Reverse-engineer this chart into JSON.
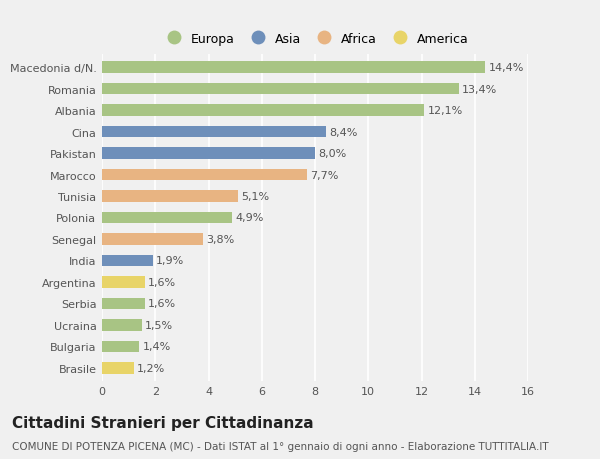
{
  "categories": [
    "Macedonia d/N.",
    "Romania",
    "Albania",
    "Cina",
    "Pakistan",
    "Marocco",
    "Tunisia",
    "Polonia",
    "Senegal",
    "India",
    "Argentina",
    "Serbia",
    "Ucraina",
    "Bulgaria",
    "Brasile"
  ],
  "values": [
    14.4,
    13.4,
    12.1,
    8.4,
    8.0,
    7.7,
    5.1,
    4.9,
    3.8,
    1.9,
    1.6,
    1.6,
    1.5,
    1.4,
    1.2
  ],
  "labels": [
    "14,4%",
    "13,4%",
    "12,1%",
    "8,4%",
    "8,0%",
    "7,7%",
    "5,1%",
    "4,9%",
    "3,8%",
    "1,9%",
    "1,6%",
    "1,6%",
    "1,5%",
    "1,4%",
    "1,2%"
  ],
  "continents": [
    "Europa",
    "Europa",
    "Europa",
    "Asia",
    "Asia",
    "Africa",
    "Africa",
    "Europa",
    "Africa",
    "Asia",
    "America",
    "Europa",
    "Europa",
    "Europa",
    "America"
  ],
  "continent_colors": {
    "Europa": "#a8c484",
    "Asia": "#6e8fba",
    "Africa": "#e8b482",
    "America": "#e8d468"
  },
  "legend_order": [
    "Europa",
    "Asia",
    "Africa",
    "America"
  ],
  "title": "Cittadini Stranieri per Cittadinanza",
  "subtitle": "COMUNE DI POTENZA PICENA (MC) - Dati ISTAT al 1° gennaio di ogni anno - Elaborazione TUTTITALIA.IT",
  "xlim": [
    0,
    16
  ],
  "xticks": [
    0,
    2,
    4,
    6,
    8,
    10,
    12,
    14,
    16
  ],
  "background_color": "#f0f0f0",
  "plot_bg_color": "#f0f0f0",
  "grid_color": "#ffffff",
  "bar_height": 0.55,
  "title_fontsize": 11,
  "subtitle_fontsize": 7.5,
  "label_fontsize": 8,
  "tick_fontsize": 8,
  "legend_fontsize": 9
}
